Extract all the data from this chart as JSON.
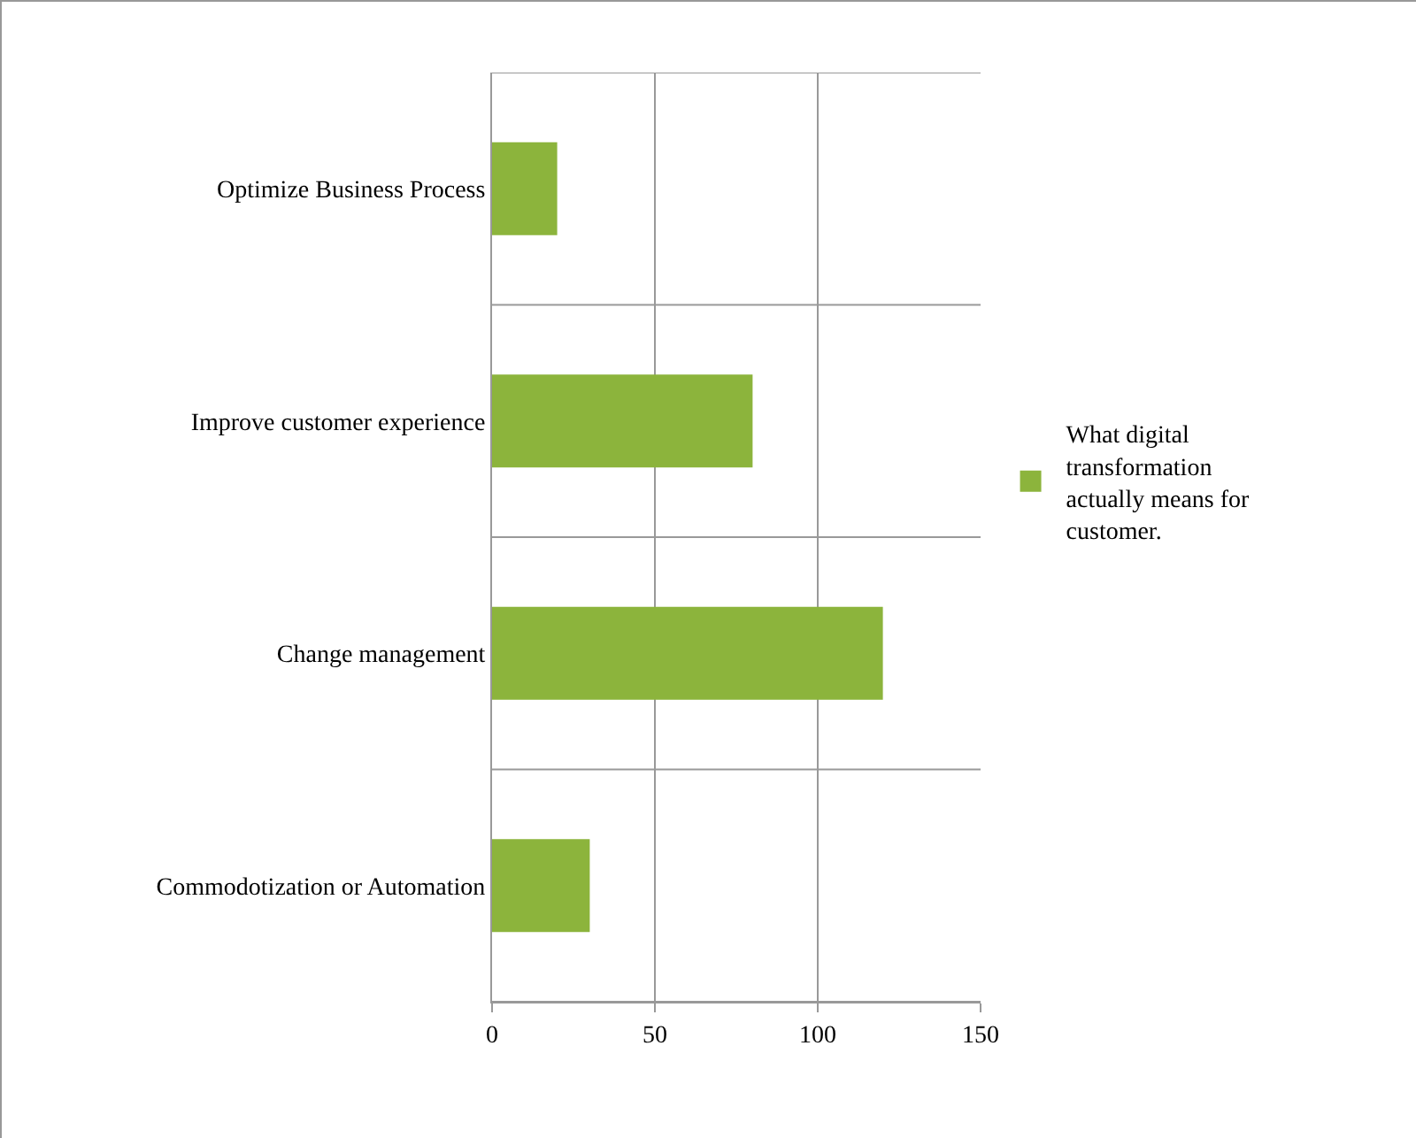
{
  "chart_data": {
    "type": "bar",
    "orientation": "horizontal",
    "categories": [
      "Optimize Business Process",
      "Improve customer experience",
      "Change management",
      "Commodotization or Automation"
    ],
    "series": [
      {
        "name": "What digital transformation actually means for customer.",
        "color": "#8cb43c",
        "values": [
          20,
          80,
          120,
          30
        ]
      }
    ],
    "xlim": [
      0,
      150
    ],
    "xticks": [
      0,
      50,
      100,
      150
    ],
    "grid": true,
    "legend": "right"
  }
}
